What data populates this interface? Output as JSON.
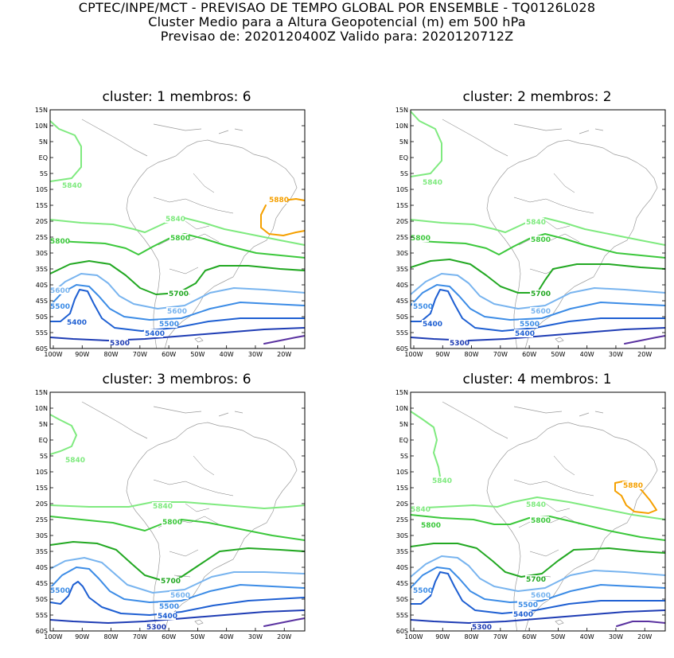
{
  "header": {
    "line1": "CPTEC/INPE/MCT - PREVISAO DE TEMPO GLOBAL POR ENSEMBLE - TQ0126L028",
    "line2": "Cluster Medio para a Altura Geopotencial (m) em 500 hPa",
    "line3": "Previsao de: 2020120400Z   Valido para: 2020120712Z"
  },
  "lat_labels": [
    "15N",
    "10N",
    "5N",
    "EQ",
    "5S",
    "10S",
    "15S",
    "20S",
    "25S",
    "30S",
    "35S",
    "40S",
    "45S",
    "50S",
    "55S",
    "60S"
  ],
  "lon_labels": [
    "100W",
    "90W",
    "80W",
    "70W",
    "60W",
    "50W",
    "40W",
    "30W",
    "20W"
  ],
  "colors": {
    "5880": "#f5a000",
    "5840": "#7fea7f",
    "5800": "#3cc83c",
    "5700": "#22a822",
    "5600": "#78b4ef",
    "5500": "#3c8ce6",
    "5400": "#1e5fd2",
    "5300": "#1e3cb4",
    "5200": "#5a32a0",
    "coast": "#9a9a9a"
  },
  "panels": [
    {
      "title": "cluster:  1   membros:  6",
      "labels": {
        "5880": "5880",
        "5840a": "5840",
        "5840b": "5840",
        "5800a": "5800",
        "5800b": "5800",
        "5700": "5700",
        "5600a": "5600",
        "5600b": "5600",
        "5500a": "5500",
        "5500b": "5500",
        "5400a": "5400",
        "5400b": "5400",
        "5300": "5300"
      }
    },
    {
      "title": "cluster:  2   membros:  2",
      "labels": {
        "5840a": "5840",
        "5840b": "5840",
        "5800a": "5800",
        "5800b": "5800",
        "5700": "5700",
        "5600b": "5600",
        "5500a": "5500",
        "5500b": "5500",
        "5400a": "5400",
        "5400b": "5400",
        "5300": "5300"
      }
    },
    {
      "title": "cluster:  3   membros:  6",
      "labels": {
        "5840a": "5840",
        "5840b": "5840",
        "5800b": "5800",
        "5700": "5700",
        "5600b": "5600",
        "5500a": "5500",
        "5500b": "5500",
        "5400b": "5400",
        "5300": "5300"
      }
    },
    {
      "title": "cluster:  4   membros:  1",
      "labels": {
        "5880": "5880",
        "5840a": "5840",
        "5840b": "5840",
        "5840c": "5840",
        "5800a": "5800",
        "5800b": "5800",
        "5700": "5700",
        "5600b": "5600",
        "5500a": "5500",
        "5500b": "5500",
        "5400b": "5400",
        "5300": "5300"
      }
    }
  ]
}
